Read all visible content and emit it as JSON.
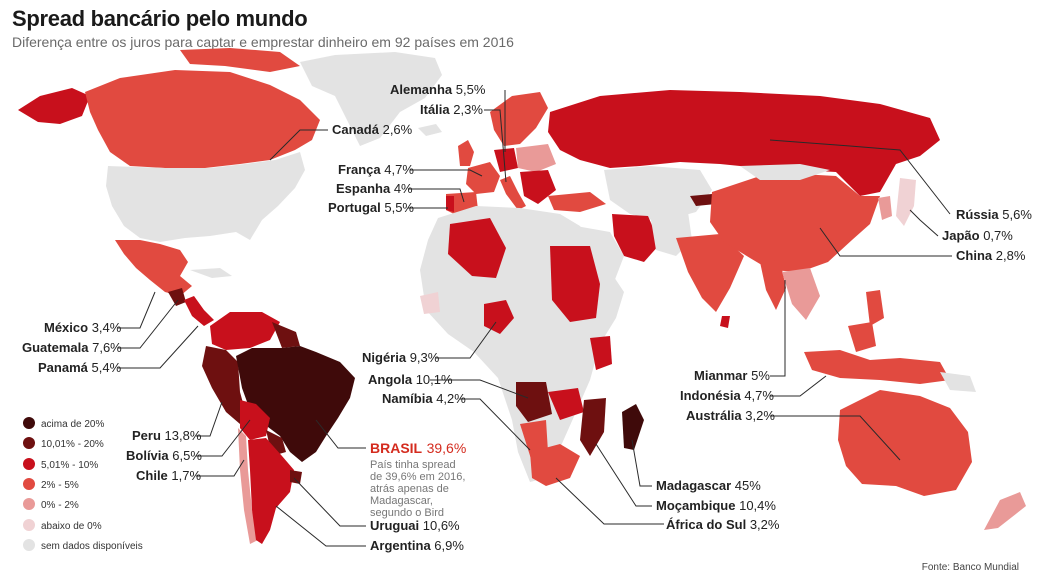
{
  "header": {
    "title": "Spread bancário pelo mundo",
    "subtitle": "Diferença entre os juros para captar e emprestar dinheiro em 92 países em 2016"
  },
  "colors": {
    "acima_20": "#3f0a0a",
    "de_10_20": "#6e1010",
    "de_5_10": "#c8101c",
    "de_2_5": "#e14a40",
    "de_0_2": "#e99a98",
    "abaixo_0": "#f0d2d4",
    "sem_dados": "#e3e3e3"
  },
  "legend": [
    {
      "label": "acima de 20%",
      "color": "#3f0a0a"
    },
    {
      "label": "10,01% - 20%",
      "color": "#6e1010"
    },
    {
      "label": "5,01% - 10%",
      "color": "#c8101c"
    },
    {
      "label": "2% - 5%",
      "color": "#e14a40"
    },
    {
      "label": "0% - 2%",
      "color": "#e99a98"
    },
    {
      "label": "abaixo de 0%",
      "color": "#f0d2d4"
    },
    {
      "label": "sem dados disponíveis",
      "color": "#e3e3e3"
    }
  ],
  "countries": [
    {
      "name": "Alemanha",
      "value": "5,5%"
    },
    {
      "name": "Itália",
      "value": "2,3%"
    },
    {
      "name": "Canadá",
      "value": "2,6%"
    },
    {
      "name": "França",
      "value": "4,7%"
    },
    {
      "name": "Espanha",
      "value": "4%"
    },
    {
      "name": "Portugal",
      "value": "5,5%"
    },
    {
      "name": "Rússia",
      "value": "5,6%"
    },
    {
      "name": "Japão",
      "value": "0,7%"
    },
    {
      "name": "China",
      "value": "2,8%"
    },
    {
      "name": "México",
      "value": "3,4%"
    },
    {
      "name": "Guatemala",
      "value": "7,6%"
    },
    {
      "name": "Panamá",
      "value": "5,4%"
    },
    {
      "name": "Nigéria",
      "value": "9,3%"
    },
    {
      "name": "Angola",
      "value": "10,1%"
    },
    {
      "name": "Namíbia",
      "value": "4,2%"
    },
    {
      "name": "Mianmar",
      "value": "5%"
    },
    {
      "name": "Indonésia",
      "value": "4,7%"
    },
    {
      "name": "Austrália",
      "value": "3,2%"
    },
    {
      "name": "Peru",
      "value": "13,8%"
    },
    {
      "name": "Bolívia",
      "value": "6,5%"
    },
    {
      "name": "Chile",
      "value": "1,7%"
    },
    {
      "name": "Madagascar",
      "value": "45%"
    },
    {
      "name": "Moçambique",
      "value": "10,4%"
    },
    {
      "name": "África do Sul",
      "value": "3,2%"
    },
    {
      "name": "Uruguai",
      "value": "10,6%"
    },
    {
      "name": "Argentina",
      "value": "6,9%"
    }
  ],
  "highlight": {
    "name": "BRASIL",
    "value": "39,6%",
    "note": [
      "País tinha spread",
      "de 39,6% em 2016,",
      "atrás apenas de",
      "Madagascar,",
      "segundo o Bird"
    ]
  },
  "source": "Fonte: Banco Mundial"
}
